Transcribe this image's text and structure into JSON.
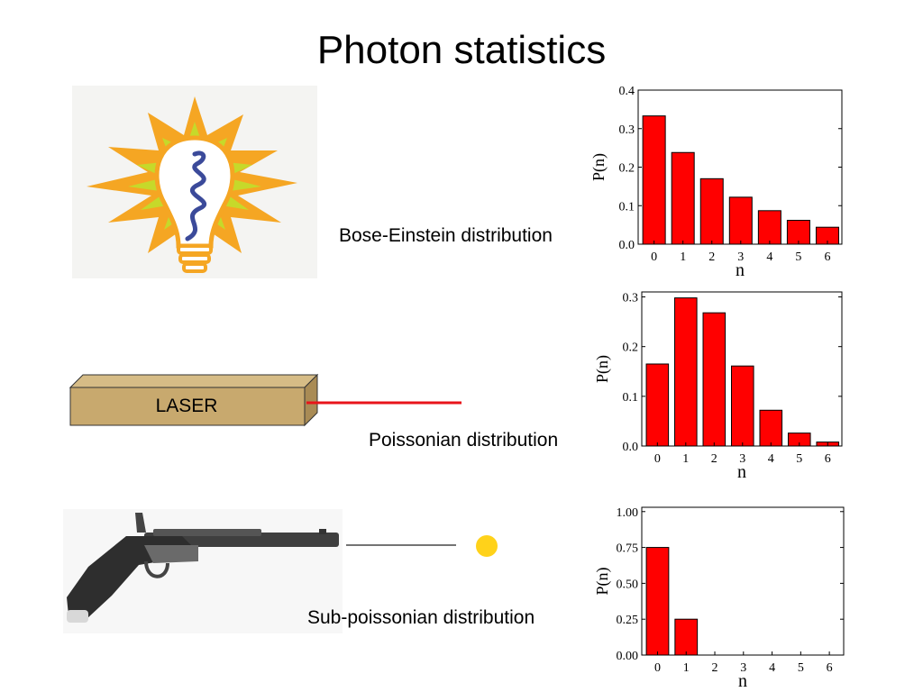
{
  "slide": {
    "title": "Photon statistics",
    "laser_label": "LASER",
    "labels": {
      "bose": "Bose-Einstein distribution",
      "poisson": "Poissonian distribution",
      "sub": "Sub-poissonian distribution"
    }
  },
  "colors": {
    "bar_fill": "#ff0000",
    "laser_box": "#c8a96e",
    "laser_beam": "#e8141a",
    "photon": "#ffd21a",
    "bulb_rays": "#f5a623",
    "bulb_filament": "#3b4a9a"
  },
  "icons": [
    "light-bulb-icon",
    "laser-box-icon",
    "pistol-icon",
    "photon-dot-icon"
  ],
  "chart_data": [
    {
      "type": "bar",
      "categories": [
        "0",
        "1",
        "2",
        "3",
        "4",
        "5",
        "6"
      ],
      "values": [
        0.333,
        0.238,
        0.17,
        0.122,
        0.087,
        0.062,
        0.044
      ],
      "xlabel": "n",
      "ylabel": "P(n)",
      "ylim": [
        0,
        0.4
      ],
      "yticks": [
        "0.0",
        "0.1",
        "0.2",
        "0.3",
        "0.4"
      ],
      "ytick_values": [
        0,
        0.1,
        0.2,
        0.3,
        0.4
      ],
      "grid": false
    },
    {
      "type": "bar",
      "categories": [
        "0",
        "1",
        "2",
        "3",
        "4",
        "5",
        "6"
      ],
      "values": [
        0.165,
        0.298,
        0.268,
        0.161,
        0.072,
        0.026,
        0.008
      ],
      "xlabel": "n",
      "ylabel": "P(n)",
      "ylim": [
        0,
        0.31
      ],
      "yticks": [
        "0.0",
        "0.1",
        "0.2",
        "0.3"
      ],
      "ytick_values": [
        0,
        0.1,
        0.2,
        0.3
      ],
      "grid": false
    },
    {
      "type": "bar",
      "categories": [
        "0",
        "1",
        "2",
        "3",
        "4",
        "5",
        "6"
      ],
      "values": [
        0.75,
        0.25,
        0,
        0,
        0,
        0,
        0
      ],
      "xlabel": "n",
      "ylabel": "P(n)",
      "ylim": [
        0,
        1.03
      ],
      "yticks": [
        "0.00",
        "0.25",
        "0.50",
        "0.75",
        "1.00"
      ],
      "ytick_values": [
        0,
        0.25,
        0.5,
        0.75,
        1.0
      ],
      "grid": false
    }
  ]
}
